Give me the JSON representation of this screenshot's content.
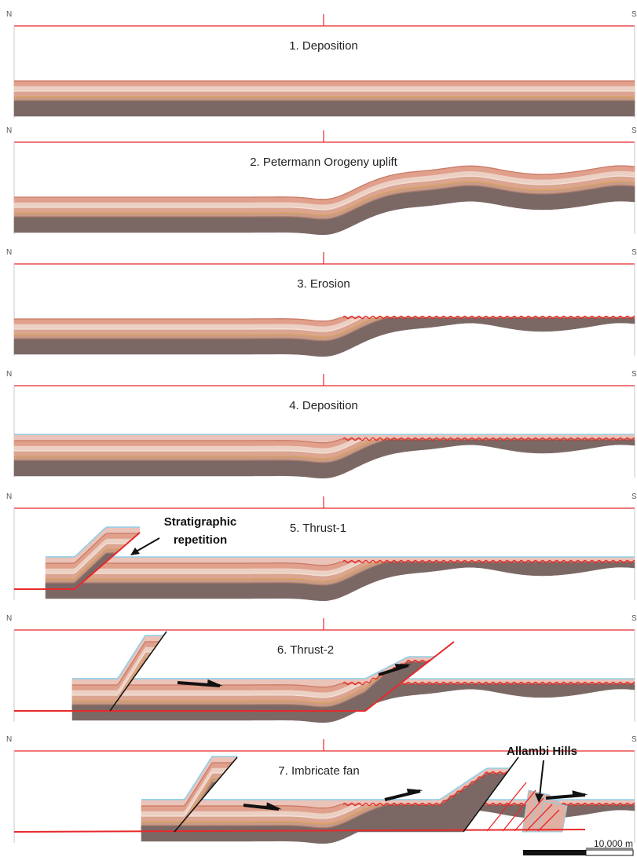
{
  "panels": [
    {
      "label_left": "N",
      "label_right": "S",
      "title": "1. Deposition"
    },
    {
      "label_left": "N",
      "label_right": "S",
      "title": "2. Petermann Orogeny uplift"
    },
    {
      "label_left": "N",
      "label_right": "S",
      "title": "3. Erosion"
    },
    {
      "label_left": "N",
      "label_right": "S",
      "title": "4. Deposition"
    },
    {
      "label_left": "N",
      "label_right": "S",
      "title": "5. Thrust-1"
    },
    {
      "label_left": "N",
      "label_right": "S",
      "title": "6. Thrust-2"
    },
    {
      "label_left": "N",
      "label_right": "S",
      "title": "7. Imbricate fan"
    }
  ],
  "annotations": {
    "stratigraphic_repetition": [
      "Stratigraphic",
      "repetition"
    ],
    "allambi_hills": "Allambi Hills"
  },
  "scale_bar": "10,000 m"
}
